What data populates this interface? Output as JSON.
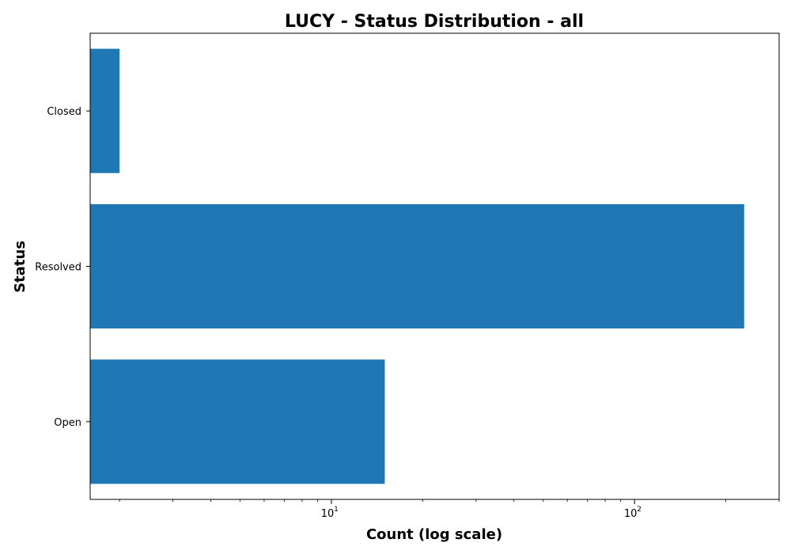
{
  "chart_data": {
    "type": "bar",
    "orientation": "horizontal",
    "title": "LUCY - Status Distribution - all",
    "xlabel": "Count (log scale)",
    "ylabel": "Status",
    "x_scale": "log",
    "xlim": [
      1.6,
      300
    ],
    "x_ticks": [
      {
        "base": "10",
        "exp": "1",
        "value": 10
      },
      {
        "base": "10",
        "exp": "2",
        "value": 100
      }
    ],
    "categories": [
      "Closed",
      "Resolved",
      "Open"
    ],
    "values": [
      2,
      230,
      15
    ],
    "grid": false,
    "bar_color": "#1f77b4"
  }
}
